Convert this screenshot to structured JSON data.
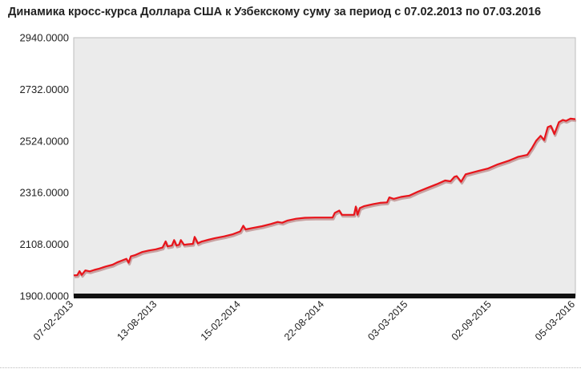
{
  "title": "Динамика кросс-курса Доллара США к Узбекскому суму за период с 07.02.2013 по 07.03.2016",
  "colors": {
    "line": "#e8141b",
    "shadow": "#c9a2a2",
    "plot_background": "#ebebeb",
    "axis_bar": "#111111"
  },
  "chart_data": {
    "type": "line",
    "title": "Динамика кросс-курса Доллара США к Узбекскому суму за период с 07.02.2013 по 07.03.2016",
    "xlabel": "",
    "ylabel": "",
    "ylim": [
      1900,
      2940
    ],
    "y_ticks": [
      "2940.0000",
      "2732.0000",
      "2524.0000",
      "2316.0000",
      "2108.0000",
      "1900.0000"
    ],
    "x_ticks": [
      "07-02-2013",
      "13-08-2013",
      "15-02-2014",
      "22-08-2014",
      "03-03-2015",
      "02-09-2015",
      "05-03-2016"
    ],
    "xlim": [
      "2013-02-07",
      "2016-03-07"
    ],
    "grid": false,
    "legend": "none",
    "series": [
      {
        "name": "",
        "points": [
          [
            "2013-02-07",
            1983
          ],
          [
            "2013-02-15",
            1984
          ],
          [
            "2013-02-20",
            2000
          ],
          [
            "2013-02-25",
            1985
          ],
          [
            "2013-03-05",
            2003
          ],
          [
            "2013-03-15",
            1999
          ],
          [
            "2013-03-25",
            2005
          ],
          [
            "2013-04-05",
            2010
          ],
          [
            "2013-04-20",
            2019
          ],
          [
            "2013-05-05",
            2026
          ],
          [
            "2013-05-15",
            2035
          ],
          [
            "2013-05-25",
            2042
          ],
          [
            "2013-06-05",
            2050
          ],
          [
            "2013-06-10",
            2034
          ],
          [
            "2013-06-15",
            2060
          ],
          [
            "2013-06-25",
            2065
          ],
          [
            "2013-07-10",
            2077
          ],
          [
            "2013-07-25",
            2083
          ],
          [
            "2013-08-10",
            2088
          ],
          [
            "2013-08-25",
            2095
          ],
          [
            "2013-09-01",
            2120
          ],
          [
            "2013-09-05",
            2100
          ],
          [
            "2013-09-15",
            2103
          ],
          [
            "2013-09-20",
            2125
          ],
          [
            "2013-09-25",
            2103
          ],
          [
            "2013-10-01",
            2106
          ],
          [
            "2013-10-05",
            2125
          ],
          [
            "2013-10-12",
            2106
          ],
          [
            "2013-10-20",
            2108
          ],
          [
            "2013-11-01",
            2110
          ],
          [
            "2013-11-05",
            2138
          ],
          [
            "2013-11-12",
            2112
          ],
          [
            "2013-11-20",
            2119
          ],
          [
            "2013-12-05",
            2126
          ],
          [
            "2013-12-20",
            2133
          ],
          [
            "2014-01-10",
            2140
          ],
          [
            "2014-01-30",
            2149
          ],
          [
            "2014-02-15",
            2160
          ],
          [
            "2014-02-22",
            2183
          ],
          [
            "2014-02-27",
            2168
          ],
          [
            "2014-03-15",
            2174
          ],
          [
            "2014-04-05",
            2181
          ],
          [
            "2014-04-25",
            2190
          ],
          [
            "2014-05-10",
            2198
          ],
          [
            "2014-05-20",
            2195
          ],
          [
            "2014-06-01",
            2204
          ],
          [
            "2014-06-20",
            2211
          ],
          [
            "2014-07-10",
            2215
          ],
          [
            "2014-08-01",
            2216
          ],
          [
            "2014-08-15",
            2216
          ],
          [
            "2014-08-25",
            2216
          ],
          [
            "2014-09-10",
            2216
          ],
          [
            "2014-09-15",
            2235
          ],
          [
            "2014-09-25",
            2244
          ],
          [
            "2014-10-01",
            2227
          ],
          [
            "2014-10-15",
            2227
          ],
          [
            "2014-10-28",
            2227
          ],
          [
            "2014-11-01",
            2260
          ],
          [
            "2014-11-05",
            2227
          ],
          [
            "2014-11-10",
            2254
          ],
          [
            "2014-11-20",
            2262
          ],
          [
            "2014-12-10",
            2270
          ],
          [
            "2014-12-25",
            2275
          ],
          [
            "2015-01-10",
            2277
          ],
          [
            "2015-01-15",
            2297
          ],
          [
            "2015-01-25",
            2291
          ],
          [
            "2015-02-10",
            2299
          ],
          [
            "2015-03-01",
            2304
          ],
          [
            "2015-03-20",
            2320
          ],
          [
            "2015-04-10",
            2335
          ],
          [
            "2015-05-01",
            2350
          ],
          [
            "2015-05-20",
            2365
          ],
          [
            "2015-06-01",
            2362
          ],
          [
            "2015-06-10",
            2380
          ],
          [
            "2015-06-15",
            2383
          ],
          [
            "2015-06-25",
            2360
          ],
          [
            "2015-07-05",
            2390
          ],
          [
            "2015-08-01",
            2403
          ],
          [
            "2015-08-25",
            2414
          ],
          [
            "2015-09-15",
            2430
          ],
          [
            "2015-10-10",
            2445
          ],
          [
            "2015-10-30",
            2460
          ],
          [
            "2015-11-20",
            2468
          ],
          [
            "2015-12-01",
            2497
          ],
          [
            "2015-12-10",
            2525
          ],
          [
            "2015-12-20",
            2545
          ],
          [
            "2015-12-28",
            2528
          ],
          [
            "2016-01-05",
            2580
          ],
          [
            "2016-01-12",
            2585
          ],
          [
            "2016-01-20",
            2552
          ],
          [
            "2016-01-30",
            2600
          ],
          [
            "2016-02-08",
            2609
          ],
          [
            "2016-02-15",
            2605
          ],
          [
            "2016-02-25",
            2614
          ],
          [
            "2016-03-07",
            2612
          ]
        ]
      }
    ]
  }
}
